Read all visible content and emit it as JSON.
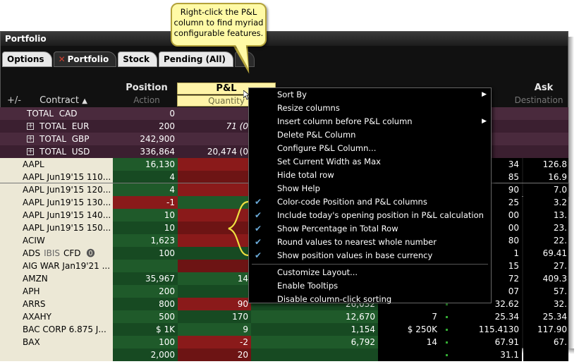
{
  "window": {
    "title": "Portfolio"
  },
  "tabs": [
    {
      "label": "Options"
    },
    {
      "label": "Portfolio"
    },
    {
      "label": "Stock"
    },
    {
      "label": "Pending (All)"
    }
  ],
  "callout": {
    "line1": "Right-click the P&L",
    "line2": "column to find myriad",
    "line3": "configurable features."
  },
  "headers": {
    "plusminus": "+/-",
    "contract": "Contract",
    "sort_arrow": "▲",
    "position": "Position",
    "position_sub": "Action",
    "pl": "P&L",
    "pl_sub": "Quantity",
    "ask": "Ask",
    "ask_sub": "Destination"
  },
  "totals": [
    {
      "label": "TOTAL",
      "ccy": "CAD",
      "position": "0",
      "pl": "",
      "expand": false
    },
    {
      "label": "TOTAL",
      "ccy": "EUR",
      "position": "200",
      "pl": "71 (0",
      "expand": true
    },
    {
      "label": "TOTAL",
      "ccy": "GBP",
      "position": "242,900",
      "pl": "",
      "expand": true
    },
    {
      "label": "TOTAL",
      "ccy": "USD",
      "position": "336,864",
      "pl": "20,474 (0",
      "expand": true
    }
  ],
  "rows": [
    {
      "contract": "AAPL",
      "position": "16,130",
      "pl": "",
      "mv": "",
      "bs": "",
      "bid": "34",
      "ask": "126.8",
      "pos_color": "g",
      "pl_color": "r"
    },
    {
      "contract": "AAPL Jun19'15 110...",
      "position": "4",
      "pl": "",
      "mv": "",
      "bs": "",
      "bid": "85",
      "ask": "16.9",
      "pos_color": "g2",
      "pl_color": "r2"
    },
    {
      "contract": "AAPL Jun19'15 120...",
      "position": "4",
      "pl": "",
      "mv": "",
      "bs": "",
      "bid": "90",
      "ask": "7.0",
      "pos_color": "g",
      "pl_color": "r"
    },
    {
      "contract": "AAPL Jun19'15 130...",
      "position": "-1",
      "pl": "",
      "mv": "",
      "bs": "",
      "bid": "25",
      "ask": "3.2",
      "pos_color": "r",
      "pl_color": "g"
    },
    {
      "contract": "AAPL Jun19'15 140...",
      "position": "10",
      "pl": "",
      "mv": "",
      "bs": "",
      "bid": "00",
      "ask": "13.",
      "pos_color": "g",
      "pl_color": "r"
    },
    {
      "contract": "AAPL Jun19'15 150...",
      "position": "10",
      "pl": "",
      "mv": "",
      "bs": "",
      "bid": "00",
      "ask": "23.",
      "pos_color": "g2",
      "pl_color": "r2"
    },
    {
      "contract": "ACIW",
      "position": "1,623",
      "pl": "",
      "mv": "",
      "bs": "",
      "bid": "80",
      "ask": "22.",
      "pos_color": "g",
      "pl_color": "r"
    },
    {
      "contract": "ADS",
      "contract_ex": "IBIS",
      "contract_t": "CFD",
      "position": "100",
      "pl": "",
      "mv": "",
      "bs": "",
      "bid": "1",
      "ask": "69.41",
      "pos_color": "g2",
      "pl_color": "g2"
    },
    {
      "contract": "AIG WAR Jan19'21 ...",
      "position": "",
      "pl": "",
      "mv": "",
      "bs": "",
      "bid": "15",
      "ask": "27.",
      "pos_color": "g",
      "pl_color": "r2"
    },
    {
      "contract": "AMZN",
      "position": "35,967",
      "pl": "14",
      "mv": "",
      "bs": "",
      "bid": "72",
      "ask": "409.3",
      "pos_color": "g2",
      "pl_color": "g"
    },
    {
      "contract": "APH",
      "position": "200",
      "pl": "",
      "mv": "",
      "bs": "",
      "bid": "07",
      "ask": "57.",
      "pos_color": "g",
      "pl_color": "g2"
    },
    {
      "contract": "ARRS",
      "position": "800",
      "pl": "90",
      "mv": "26,032",
      "bs": "",
      "bid": "32.62",
      "ask": "32.",
      "pos_color": "g2",
      "pl_color": "r"
    },
    {
      "contract": "AXAHY",
      "position": "500",
      "pl": "170",
      "mv": "12,670",
      "bs": "7",
      "bid": "25.34",
      "ask": "25.34",
      "pos_color": "g",
      "pl_color": "g2"
    },
    {
      "contract": "BAC CORP 6.875 J...",
      "position": "$ 1K",
      "pl": "9",
      "mv": "1,154",
      "bs": "$ 250K",
      "bid": "115.4130",
      "ask": "117.90",
      "pos_color": "g2",
      "pl_color": "g"
    },
    {
      "contract": "BAX",
      "position": "100",
      "pl": "-2",
      "mv": "6,792",
      "bs": "14",
      "bid": "67.91",
      "ask": "67.",
      "pos_color": "g",
      "pl_color": "r"
    },
    {
      "contract": "",
      "position": "2,000",
      "pl": "20",
      "mv": "",
      "bs": "",
      "bid": "31.1",
      "ask": "",
      "pos_color": "g2",
      "pl_color": "r2"
    }
  ],
  "context_menu": {
    "items": [
      {
        "label": "Sort By",
        "checked": false,
        "submenu": true
      },
      {
        "label": "Resize columns",
        "checked": false,
        "submenu": false
      },
      {
        "label": "Insert column before P&L column",
        "checked": false,
        "submenu": true
      },
      {
        "label": "Delete P&L Column",
        "checked": false,
        "submenu": false
      },
      {
        "label": "Configure P&L Column...",
        "checked": false,
        "submenu": false
      },
      {
        "label": "Set Current Width as Max",
        "checked": false,
        "submenu": false
      },
      {
        "label": "Hide total row",
        "checked": false,
        "submenu": false
      },
      {
        "label": "Show Help",
        "checked": false,
        "submenu": false
      },
      {
        "label": "Color-code Position and P&L columns",
        "checked": true,
        "submenu": false
      },
      {
        "label": "Include today's opening position in P&L calculation",
        "checked": true,
        "submenu": false
      },
      {
        "label": "Show Percentage in Total Row",
        "checked": true,
        "submenu": false
      },
      {
        "label": "Round values to nearest whole number",
        "checked": true,
        "submenu": false
      },
      {
        "label": "Show position values in base currency",
        "checked": true,
        "submenu": false
      }
    ],
    "items2": [
      {
        "label": "Customize Layout..."
      },
      {
        "label": "Enable Tooltips"
      },
      {
        "label": "Disable column-click sorting"
      }
    ]
  },
  "colors": {
    "callout_bg": "#fffaa6",
    "pl_header": "#fff4a8",
    "green": "#1f5a2a",
    "red": "#8a1a1a",
    "total_bg": "#4a2a3d"
  }
}
